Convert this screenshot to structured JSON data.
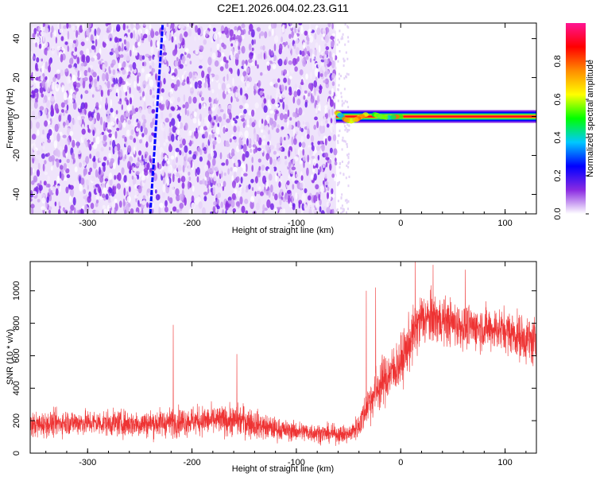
{
  "chart_data": [
    {
      "type": "heatmap",
      "title": "C2E1.2026.004.02.23.G11",
      "xlabel": "Height of straight line (km)",
      "ylabel": "Frequency (Hz)",
      "xlim": [
        -355,
        130
      ],
      "ylim": [
        -50,
        48
      ],
      "x_ticks": [
        -300,
        -200,
        -100,
        0,
        100
      ],
      "y_ticks": [
        -40,
        -20,
        0,
        20,
        40
      ],
      "colorbar": {
        "label": "Normalized spectral amplitude",
        "ticks": [
          0.0,
          0.2,
          0.4,
          0.6,
          0.8
        ],
        "range": [
          0,
          1
        ],
        "colors": [
          "#ffffff",
          "#8a2be2",
          "#0000ff",
          "#00c8ff",
          "#00ff00",
          "#ffff00",
          "#ff8c00",
          "#ff0000",
          "#ff1493"
        ]
      },
      "features": {
        "noise_region_x": [
          -355,
          -62
        ],
        "slanted_line": {
          "start": [
            -240,
            -50
          ],
          "end": [
            -228,
            48
          ],
          "amplitude": 0.25
        },
        "carrier_x": [
          -62,
          130
        ],
        "carrier_freq": 0,
        "carrier_amplitude": 0.9,
        "wobble_x": [
          -62,
          0
        ],
        "wobble_amplitude_hz": 3
      },
      "grid": false
    },
    {
      "type": "line",
      "title": "",
      "xlabel": "Height of straight line (km)",
      "ylabel": "SNR (10 * v/v)",
      "xlim": [
        -355,
        130
      ],
      "ylim": [
        0,
        1180
      ],
      "x_ticks": [
        -300,
        -200,
        -100,
        0,
        100
      ],
      "y_ticks": [
        0,
        200,
        400,
        600,
        800,
        1000
      ],
      "series": [
        {
          "color": "#ee3333",
          "envelope": {
            "x": [
              -355,
              -320,
              -280,
              -250,
              -220,
              -200,
              -170,
              -150,
              -130,
              -110,
              -90,
              -70,
              -50,
              -40,
              -30,
              -20,
              -10,
              0,
              10,
              20,
              40,
              60,
              80,
              100,
              120,
              130
            ],
            "mean": [
              170,
              190,
              185,
              180,
              190,
              200,
              200,
              200,
              160,
              140,
              130,
              120,
              115,
              170,
              320,
              420,
              490,
              560,
              700,
              830,
              820,
              780,
              770,
              760,
              700,
              680
            ],
            "spread": [
              70,
              70,
              70,
              75,
              80,
              80,
              80,
              90,
              70,
              55,
              55,
              50,
              50,
              70,
              120,
              140,
              140,
              140,
              150,
              150,
              130,
              120,
              120,
              120,
              130,
              140
            ]
          },
          "spikes": [
            [
              -218,
              790
            ],
            [
              -157,
              610
            ],
            [
              -33,
              1000
            ],
            [
              -24,
              1020
            ],
            [
              14,
              1180
            ],
            [
              31,
              1160
            ],
            [
              62,
              1130
            ]
          ]
        }
      ],
      "grid": false
    }
  ]
}
